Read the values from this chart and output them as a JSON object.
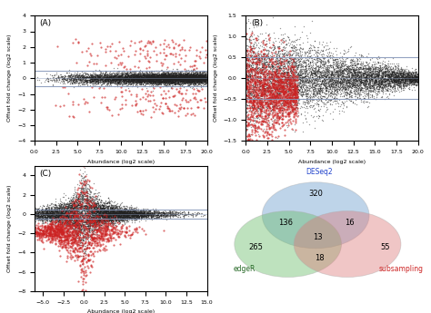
{
  "panel_A": {
    "title": "(A)",
    "xlim": [
      0,
      20
    ],
    "ylim": [
      -4,
      4
    ],
    "xlabel": "Abundance (log2 scale)",
    "ylabel": "Offset fold change (log2 scale)",
    "hlines": [
      0.5,
      -0.5
    ],
    "hline_color": "#8899bb",
    "n_black": 8000,
    "n_red": 300
  },
  "panel_B": {
    "title": "(B)",
    "xlim": [
      0,
      20
    ],
    "ylim": [
      -1.5,
      1.5
    ],
    "xlabel": "Abundance (log2 scale)",
    "ylabel": "Offset fold change (log2 scale)",
    "hlines": [
      0.5,
      -0.5
    ],
    "hline_color": "#8899bb",
    "n_black": 8000,
    "n_red": 1500
  },
  "panel_C": {
    "title": "(C)",
    "xlim": [
      -6,
      15
    ],
    "ylim": [
      -8,
      5
    ],
    "xlabel": "Abundance (log2 scale)",
    "ylabel": "Offset fold change (log2 scale)",
    "hlines": [
      0.5,
      -0.5
    ],
    "hline_color": "#8899bb",
    "n_black": 8000,
    "n_red": 1500
  },
  "venn": {
    "sets": [
      "DESeq2",
      "edgeR",
      "subsampling"
    ],
    "colors": [
      "#6699cc",
      "#66bb66",
      "#dd7777"
    ],
    "only_A": "320",
    "only_B": "265",
    "only_C": "55",
    "AB_only": "136",
    "AC_only": "16",
    "BC_only": "18",
    "ABC": "13",
    "label_colors": [
      "#2244cc",
      "#226622",
      "#cc2222"
    ]
  },
  "black_color": "#222222",
  "red_color": "#cc2222",
  "dot_size": 1.0,
  "dot_alpha": 0.45
}
